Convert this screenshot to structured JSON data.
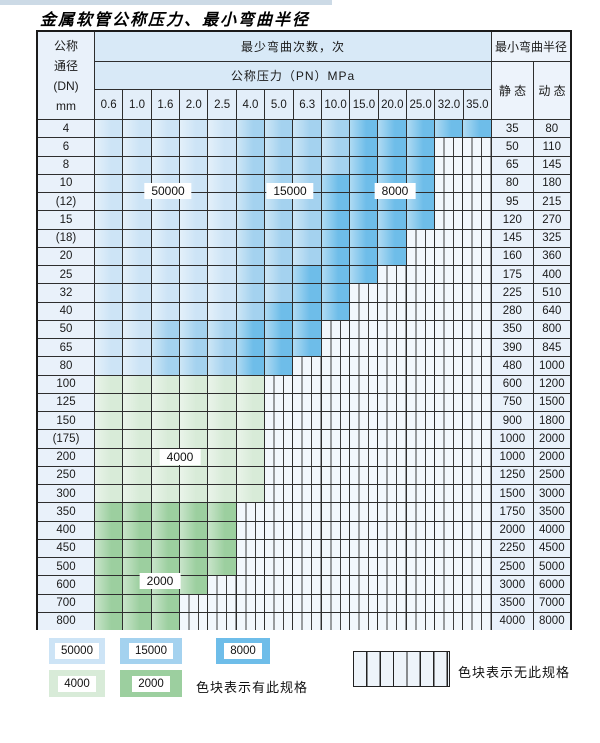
{
  "title": "金属软管公称压力、最小弯曲半径",
  "table": {
    "header": {
      "dn_lines": [
        "公称",
        "通径",
        "(DN)",
        "mm"
      ],
      "bend_cycles": "最少弯曲次数，次",
      "pressure": "公称压力（PN）MPa",
      "min_radius": "最小弯曲半径",
      "static": "静 态",
      "dynamic": "动 态",
      "pressure_columns": [
        "0.6",
        "1.0",
        "1.6",
        "2.0",
        "2.5",
        "4.0",
        "5.0",
        "6.3",
        "10.0",
        "15.0",
        "20.0",
        "25.0",
        "32.0",
        "35.0"
      ]
    },
    "rows": [
      {
        "dn": "4",
        "static": "35",
        "dynamic": "80",
        "zone": "blue",
        "light_end": 4,
        "med_end": 8,
        "color_end": 13
      },
      {
        "dn": "6",
        "static": "50",
        "dynamic": "110",
        "zone": "blue",
        "light_end": 4,
        "med_end": 8,
        "color_end": 11
      },
      {
        "dn": "8",
        "static": "65",
        "dynamic": "145",
        "zone": "blue",
        "light_end": 4,
        "med_end": 8,
        "color_end": 11
      },
      {
        "dn": "10",
        "static": "80",
        "dynamic": "180",
        "zone": "blue",
        "light_end": 4,
        "med_end": 7,
        "color_end": 11
      },
      {
        "dn": "(12)",
        "static": "95",
        "dynamic": "215",
        "zone": "blue",
        "light_end": 4,
        "med_end": 7,
        "color_end": 11
      },
      {
        "dn": "15",
        "static": "120",
        "dynamic": "270",
        "zone": "blue",
        "light_end": 4,
        "med_end": 7,
        "color_end": 11
      },
      {
        "dn": "(18)",
        "static": "145",
        "dynamic": "325",
        "zone": "blue",
        "light_end": 4,
        "med_end": 7,
        "color_end": 10
      },
      {
        "dn": "20",
        "static": "160",
        "dynamic": "360",
        "zone": "blue",
        "light_end": 4,
        "med_end": 7,
        "color_end": 10
      },
      {
        "dn": "25",
        "static": "175",
        "dynamic": "400",
        "zone": "blue",
        "light_end": 4,
        "med_end": 6,
        "color_end": 9
      },
      {
        "dn": "32",
        "static": "225",
        "dynamic": "510",
        "zone": "blue",
        "light_end": 4,
        "med_end": 6,
        "color_end": 8
      },
      {
        "dn": "40",
        "static": "280",
        "dynamic": "640",
        "zone": "blue",
        "light_end": 4,
        "med_end": 5,
        "color_end": 8
      },
      {
        "dn": "50",
        "static": "350",
        "dynamic": "800",
        "zone": "blue",
        "light_end": 1,
        "med_end": 4,
        "color_end": 7
      },
      {
        "dn": "65",
        "static": "390",
        "dynamic": "845",
        "zone": "blue",
        "light_end": 1,
        "med_end": 4,
        "color_end": 7
      },
      {
        "dn": "80",
        "static": "480",
        "dynamic": "1000",
        "zone": "blue",
        "light_end": 1,
        "med_end": 4,
        "color_end": 6
      },
      {
        "dn": "100",
        "static": "600",
        "dynamic": "1200",
        "zone": "green",
        "shade": "light",
        "color_end": 5
      },
      {
        "dn": "125",
        "static": "750",
        "dynamic": "1500",
        "zone": "green",
        "shade": "light",
        "color_end": 5
      },
      {
        "dn": "150",
        "static": "900",
        "dynamic": "1800",
        "zone": "green",
        "shade": "light",
        "color_end": 5
      },
      {
        "dn": "(175)",
        "static": "1000",
        "dynamic": "2000",
        "zone": "green",
        "shade": "light",
        "color_end": 5
      },
      {
        "dn": "200",
        "static": "1000",
        "dynamic": "2000",
        "zone": "green",
        "shade": "light",
        "color_end": 5
      },
      {
        "dn": "250",
        "static": "1250",
        "dynamic": "2500",
        "zone": "green",
        "shade": "light",
        "color_end": 5
      },
      {
        "dn": "300",
        "static": "1500",
        "dynamic": "3000",
        "zone": "green",
        "shade": "light",
        "color_end": 5
      },
      {
        "dn": "350",
        "static": "1750",
        "dynamic": "3500",
        "zone": "green",
        "shade": "dark",
        "color_end": 4
      },
      {
        "dn": "400",
        "static": "2000",
        "dynamic": "4000",
        "zone": "green",
        "shade": "dark",
        "color_end": 4
      },
      {
        "dn": "450",
        "static": "2250",
        "dynamic": "4500",
        "zone": "green",
        "shade": "dark",
        "color_end": 4
      },
      {
        "dn": "500",
        "static": "2500",
        "dynamic": "5000",
        "zone": "green",
        "shade": "dark",
        "color_end": 4
      },
      {
        "dn": "600",
        "static": "3000",
        "dynamic": "6000",
        "zone": "green",
        "shade": "dark",
        "color_end": 3
      },
      {
        "dn": "700",
        "static": "3500",
        "dynamic": "7000",
        "zone": "green",
        "shade": "dark",
        "color_end": 2
      },
      {
        "dn": "800",
        "static": "4000",
        "dynamic": "8000",
        "zone": "green",
        "shade": "dark",
        "color_end": 2
      }
    ]
  },
  "overlay_labels": [
    {
      "id": "label-50000",
      "text": "50000"
    },
    {
      "id": "label-15000",
      "text": "15000"
    },
    {
      "id": "label-8000",
      "text": "8000"
    },
    {
      "id": "label-4000",
      "text": "4000"
    },
    {
      "id": "label-2000",
      "text": "2000"
    }
  ],
  "legend": {
    "swatches": [
      {
        "id": "legend-50000",
        "text": "50000",
        "color": "#cde4f6"
      },
      {
        "id": "legend-15000",
        "text": "15000",
        "color": "#a4d2ef"
      },
      {
        "id": "legend-8000",
        "text": "8000",
        "color": "#6ebde9"
      },
      {
        "id": "legend-4000",
        "text": "4000",
        "color": "#d8ebd8"
      },
      {
        "id": "legend-2000",
        "text": "2000",
        "color": "#9ccf9f"
      }
    ],
    "has_spec_text": "色块表示有此规格",
    "no_spec_text": "色块表示无此规格"
  },
  "colors": {
    "blue_50000": "#cde4f6",
    "blue_15000": "#a4d2ef",
    "blue_8000": "#6ebde9",
    "green_4000": "#d8ebd8",
    "green_2000": "#9ccf9f",
    "grid_line": "#2e2e2e"
  }
}
